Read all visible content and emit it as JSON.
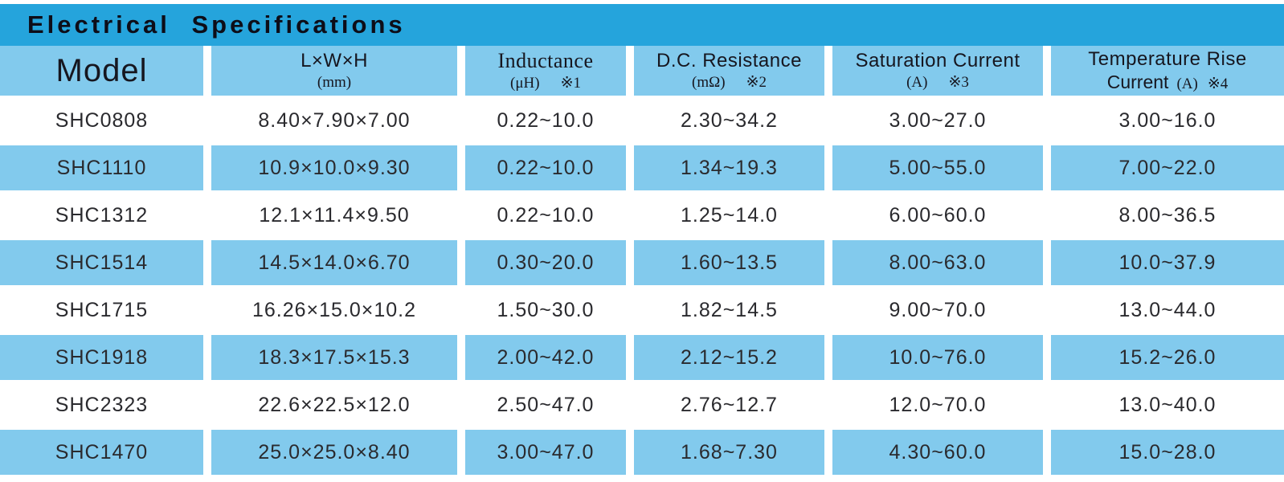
{
  "title": "Electrical Specifications",
  "colors": {
    "title_bar_blue": "#25A4DC",
    "cell_blue": "#82CAED",
    "text_dark": "#16161f"
  },
  "table": {
    "columns": [
      {
        "line1": "Model",
        "line2": "",
        "unit": "",
        "note": ""
      },
      {
        "line1": "L×W×H",
        "line2": "",
        "unit": "(mm)",
        "note": ""
      },
      {
        "line1": "Inductance",
        "line2": "",
        "unit": "(μH)",
        "note": "※1"
      },
      {
        "line1": "D.C. Resistance",
        "line2": "",
        "unit": "(mΩ)",
        "note": "※2"
      },
      {
        "line1": "Saturation Current",
        "line2": "",
        "unit": "(A)",
        "note": "※3"
      },
      {
        "line1": "Temperature Rise",
        "line2": "Current",
        "unit": "(A)",
        "note": "※4"
      }
    ],
    "rows": [
      [
        "SHC0808",
        "8.40×7.90×7.00",
        "0.22~10.0",
        "2.30~34.2",
        "3.00~27.0",
        "3.00~16.0"
      ],
      [
        "SHC1110",
        "10.9×10.0×9.30",
        "0.22~10.0",
        "1.34~19.3",
        "5.00~55.0",
        "7.00~22.0"
      ],
      [
        "SHC1312",
        "12.1×11.4×9.50",
        "0.22~10.0",
        "1.25~14.0",
        "6.00~60.0",
        "8.00~36.5"
      ],
      [
        "SHC1514",
        "14.5×14.0×6.70",
        "0.30~20.0",
        "1.60~13.5",
        "8.00~63.0",
        "10.0~37.9"
      ],
      [
        "SHC1715",
        "16.26×15.0×10.2",
        "1.50~30.0",
        "1.82~14.5",
        "9.00~70.0",
        "13.0~44.0"
      ],
      [
        "SHC1918",
        "18.3×17.5×15.3",
        "2.00~42.0",
        "2.12~15.2",
        "10.0~76.0",
        "15.2~26.0"
      ],
      [
        "SHC2323",
        "22.6×22.5×12.0",
        "2.50~47.0",
        "2.76~12.7",
        "12.0~70.0",
        "13.0~40.0"
      ],
      [
        "SHC1470",
        "25.0×25.0×8.40",
        "3.00~47.0",
        "1.68~7.30",
        "4.30~60.0",
        "15.0~28.0"
      ]
    ]
  }
}
